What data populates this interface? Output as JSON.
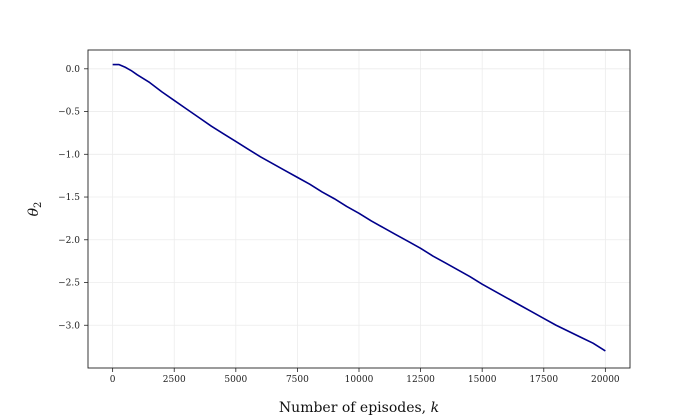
{
  "chart_data": {
    "type": "line",
    "xlabel_text": "Number of episodes, ",
    "xlabel_var": "k",
    "ylabel_var": "θ",
    "ylabel_sub": "2",
    "xlim": [
      -1000,
      21000
    ],
    "ylim": [
      -3.5,
      0.22
    ],
    "xticks": [
      0,
      2500,
      5000,
      7500,
      10000,
      12500,
      15000,
      17500,
      20000
    ],
    "yticks": [
      0.0,
      -0.5,
      -1.0,
      -1.5,
      -2.0,
      -2.5,
      -3.0
    ],
    "ytick_labels": [
      "0.0",
      "−0.5",
      "−1.0",
      "−1.5",
      "−2.0",
      "−2.5",
      "−3.0"
    ],
    "grid": true,
    "series": [
      {
        "color": "#00008b",
        "x": [
          0,
          250,
          500,
          750,
          1000,
          1500,
          2000,
          2500,
          3000,
          3500,
          4000,
          4500,
          5000,
          5500,
          6000,
          6500,
          7000,
          7500,
          8000,
          8500,
          9000,
          9500,
          10000,
          10500,
          11000,
          11500,
          12000,
          12500,
          13000,
          13500,
          14000,
          14500,
          15000,
          15500,
          16000,
          16500,
          17000,
          17500,
          18000,
          18500,
          19000,
          19500,
          20000
        ],
        "y": [
          0.05,
          0.05,
          0.02,
          -0.02,
          -0.07,
          -0.16,
          -0.27,
          -0.37,
          -0.47,
          -0.57,
          -0.67,
          -0.76,
          -0.85,
          -0.94,
          -1.03,
          -1.11,
          -1.19,
          -1.27,
          -1.35,
          -1.44,
          -1.52,
          -1.61,
          -1.69,
          -1.78,
          -1.86,
          -1.94,
          -2.02,
          -2.1,
          -2.19,
          -2.27,
          -2.35,
          -2.43,
          -2.52,
          -2.6,
          -2.68,
          -2.76,
          -2.84,
          -2.92,
          -3.0,
          -3.07,
          -3.14,
          -3.21,
          -3.3
        ]
      }
    ]
  }
}
